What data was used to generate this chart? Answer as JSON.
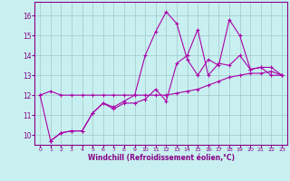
{
  "title": "",
  "xlabel": "Windchill (Refroidissement éolien,°C)",
  "bg_color": "#c8f0f0",
  "grid_color": "#a0c8c8",
  "line_color": "#aa00aa",
  "xlim": [
    -0.5,
    23.5
  ],
  "ylim": [
    9.5,
    16.7
  ],
  "yticks": [
    10,
    11,
    12,
    13,
    14,
    15,
    16
  ],
  "xticks": [
    0,
    1,
    2,
    3,
    4,
    5,
    6,
    7,
    8,
    9,
    10,
    11,
    12,
    13,
    14,
    15,
    16,
    17,
    18,
    19,
    20,
    21,
    22,
    23
  ],
  "line1_x": [
    0,
    1,
    2,
    3,
    4,
    5,
    6,
    7,
    8,
    9,
    10,
    11,
    12,
    13,
    14,
    15,
    16,
    17,
    18,
    19,
    20,
    21,
    22,
    23
  ],
  "line1_y": [
    12.0,
    12.2,
    12.0,
    12.0,
    12.0,
    12.0,
    12.0,
    12.0,
    12.0,
    12.0,
    12.0,
    12.0,
    12.0,
    12.1,
    12.2,
    12.3,
    12.5,
    12.7,
    12.9,
    13.0,
    13.1,
    13.1,
    13.2,
    13.0
  ],
  "line2_x": [
    0,
    1,
    2,
    3,
    4,
    5,
    6,
    7,
    8,
    9,
    10,
    11,
    12,
    13,
    14,
    15,
    16,
    17,
    18,
    19,
    20,
    21,
    22,
    23
  ],
  "line2_y": [
    12.0,
    9.7,
    10.1,
    10.2,
    10.2,
    11.1,
    11.6,
    11.3,
    11.6,
    11.6,
    11.8,
    12.3,
    11.7,
    13.6,
    14.0,
    15.3,
    13.0,
    13.6,
    13.5,
    14.0,
    13.3,
    13.4,
    13.0,
    13.0
  ],
  "line3_x": [
    1,
    2,
    3,
    4,
    5,
    6,
    7,
    8,
    9,
    10,
    11,
    12,
    13,
    14,
    15,
    16,
    17,
    18,
    19,
    20,
    21,
    22,
    23
  ],
  "line3_y": [
    9.7,
    10.1,
    10.2,
    10.2,
    11.1,
    11.6,
    11.4,
    11.7,
    12.0,
    14.0,
    15.2,
    16.2,
    15.6,
    13.8,
    13.0,
    13.8,
    13.5,
    15.8,
    15.0,
    13.3,
    13.4,
    13.4,
    13.0
  ],
  "marker": "+",
  "markersize": 3.5,
  "linewidth": 0.8
}
